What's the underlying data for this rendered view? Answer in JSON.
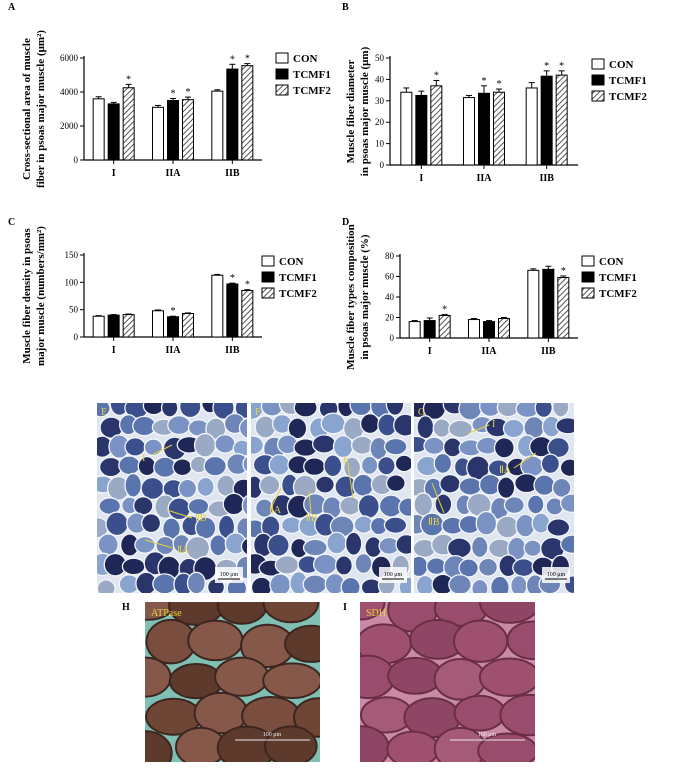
{
  "chart_data": [
    {
      "panel": "A",
      "type": "bar",
      "ylabel_lines": [
        "Cross-sectional area of muscle",
        "fiber in psoas major muscle (μm²)"
      ],
      "categories": [
        "I",
        "IIA",
        "IIB"
      ],
      "ylim": [
        0,
        6000
      ],
      "yticks": [
        0,
        2000,
        4000,
        6000
      ],
      "series": [
        {
          "name": "CON",
          "values": [
            3600,
            3100,
            4050
          ],
          "errors": [
            120,
            110,
            80
          ],
          "sig": [
            false,
            false,
            false
          ]
        },
        {
          "name": "TCMF1",
          "values": [
            3300,
            3500,
            5350
          ],
          "errors": [
            90,
            120,
            280
          ],
          "sig": [
            false,
            true,
            true
          ]
        },
        {
          "name": "TCMF2",
          "values": [
            4250,
            3550,
            5550
          ],
          "errors": [
            200,
            150,
            120
          ],
          "sig": [
            true,
            true,
            true
          ]
        }
      ],
      "sig_marker": "*"
    },
    {
      "panel": "B",
      "type": "bar",
      "ylabel_lines": [
        "Muscle fiber diameter",
        "in psoas major muscle (μm)"
      ],
      "categories": [
        "I",
        "IIA",
        "IIB"
      ],
      "ylim": [
        0,
        50
      ],
      "yticks": [
        0,
        10,
        20,
        30,
        40,
        50
      ],
      "series": [
        {
          "name": "CON",
          "values": [
            34,
            31.5,
            36
          ],
          "errors": [
            2,
            1,
            2.5
          ],
          "sig": [
            false,
            false,
            false
          ]
        },
        {
          "name": "TCMF1",
          "values": [
            32.5,
            33.5,
            41.5
          ],
          "errors": [
            2,
            3.5,
            2.5
          ],
          "sig": [
            false,
            true,
            true
          ]
        },
        {
          "name": "TCMF2",
          "values": [
            37,
            34,
            42
          ],
          "errors": [
            2.5,
            1.5,
            2
          ],
          "sig": [
            true,
            true,
            true
          ]
        }
      ],
      "sig_marker": "*"
    },
    {
      "panel": "C",
      "type": "bar",
      "ylabel_lines": [
        "Muscle fiber density in psoas",
        "major muscle (numbers/mm²)"
      ],
      "categories": [
        "I",
        "IIA",
        "IIB"
      ],
      "ylim": [
        0,
        150
      ],
      "yticks": [
        0,
        50,
        100,
        150
      ],
      "series": [
        {
          "name": "CON",
          "values": [
            38,
            48,
            113
          ],
          "errors": [
            1,
            1.5,
            1.5
          ],
          "sig": [
            false,
            false,
            false
          ]
        },
        {
          "name": "TCMF1",
          "values": [
            40,
            37,
            97
          ],
          "errors": [
            1,
            1,
            1.5
          ],
          "sig": [
            false,
            true,
            true
          ]
        },
        {
          "name": "TCMF2",
          "values": [
            41,
            43,
            85
          ],
          "errors": [
            1,
            1,
            1.5
          ],
          "sig": [
            false,
            false,
            true
          ]
        }
      ],
      "sig_marker": "*"
    },
    {
      "panel": "D",
      "type": "bar",
      "ylabel_lines": [
        "Muscle fiber types composition",
        "in psoas major muscle (%)"
      ],
      "categories": [
        "I",
        "IIA",
        "IIB"
      ],
      "ylim": [
        0,
        80
      ],
      "yticks": [
        0,
        20,
        40,
        60,
        80
      ],
      "series": [
        {
          "name": "CON",
          "values": [
            16,
            18,
            66
          ],
          "errors": [
            1,
            1,
            1.5
          ],
          "sig": [
            false,
            false,
            false
          ]
        },
        {
          "name": "TCMF1",
          "values": [
            17,
            16,
            67
          ],
          "errors": [
            2.5,
            1,
            3
          ],
          "sig": [
            false,
            false,
            false
          ]
        },
        {
          "name": "TCMF2",
          "values": [
            22,
            19,
            59
          ],
          "errors": [
            1,
            1,
            1.5
          ],
          "sig": [
            true,
            false,
            true
          ]
        }
      ],
      "sig_marker": "*"
    }
  ],
  "legend": [
    "CON",
    "TCMF1",
    "TCMF2"
  ],
  "micrographs": [
    {
      "panel": "E",
      "labels": [
        "I",
        "ⅡB",
        "ⅡA"
      ],
      "scale": "100 μm"
    },
    {
      "panel": "F",
      "labels": [
        "I",
        "ⅡA",
        "ⅡB"
      ],
      "scale": "100 μm"
    },
    {
      "panel": "G",
      "labels": [
        "I",
        "ⅡA",
        "ⅡB"
      ],
      "scale": "100 μm"
    },
    {
      "panel": "H",
      "labels": [
        "ATPase"
      ],
      "scale": "100 μm"
    },
    {
      "panel": "I",
      "labels": [
        "SDH"
      ],
      "scale": "100 μm"
    }
  ],
  "colors": {
    "con": "#ffffff",
    "tcmf1": "#000000",
    "tcmf2_hatch": "#555555",
    "stain_blue_bg": "#4d6fae",
    "stain_dark": "#1b2450",
    "atpase_bg": "#7a4a3c",
    "sdh_bg": "#a0506f",
    "annotation": "#e6d23c"
  }
}
